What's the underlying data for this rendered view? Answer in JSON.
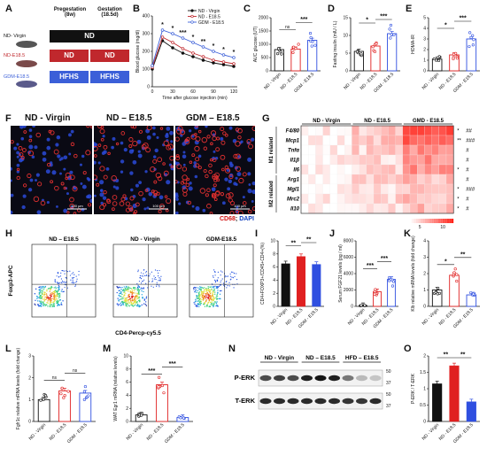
{
  "panel_letters": [
    "A",
    "B",
    "C",
    "D",
    "E",
    "F",
    "G",
    "H",
    "I",
    "J",
    "K",
    "L",
    "M",
    "N",
    "O"
  ],
  "panelA": {
    "col_headers": [
      "Pregestation\n(8w)",
      "Gestation\n(18.5d)"
    ],
    "rows": [
      {
        "label": "ND- Virgin",
        "boxes": [
          "ND"
        ],
        "color": "#111111"
      },
      {
        "label": "ND-E18.5",
        "boxes": [
          "ND",
          "ND"
        ],
        "color": "#c0282d"
      },
      {
        "label": "GDM-E18.5",
        "boxes": [
          "HFHS",
          "HFHS"
        ],
        "color": "#3b5fd8"
      }
    ]
  },
  "groups_ND": [
    "ND - Virgin",
    "ND - E18.5",
    "GDM - E18.5"
  ],
  "chart_data": [
    {
      "id": "B",
      "type": "line",
      "ylabel": "Blood glucose (mg/dl)",
      "xlabel": "Time after glucose injection (min)",
      "x": [
        0,
        15,
        30,
        45,
        60,
        75,
        90,
        105,
        120
      ],
      "ylim": [
        0,
        400
      ],
      "yticks": [
        0,
        100,
        200,
        300,
        400
      ],
      "series": [
        {
          "name": "ND - Virgin",
          "color": "#111111",
          "values": [
            100,
            260,
            220,
            190,
            170,
            150,
            135,
            125,
            115
          ]
        },
        {
          "name": "ND - E18.5",
          "color": "#c0282d",
          "values": [
            110,
            280,
            250,
            215,
            190,
            170,
            150,
            140,
            130
          ]
        },
        {
          "name": "GDM - E18.5",
          "color": "#3b5fd8",
          "values": [
            120,
            320,
            300,
            275,
            250,
            225,
            200,
            180,
            165
          ]
        }
      ],
      "stars": [
        "*",
        "*",
        "***",
        "*",
        "**",
        "*",
        "*",
        "*"
      ]
    },
    {
      "id": "C",
      "type": "bar",
      "ylabel": "AUC glucose (UT)",
      "categories": [
        "ND - Virgin",
        "ND - E18.5",
        "GDM - E18.5"
      ],
      "values": [
        800,
        820,
        1150
      ],
      "ylim": [
        0,
        2000
      ],
      "yticks": [
        0,
        500,
        1000,
        1500,
        2000
      ],
      "annotations": [
        "ns",
        "***"
      ]
    },
    {
      "id": "D",
      "type": "bar",
      "ylabel": "Fasting insulin (mIU / L)",
      "categories": [
        "ND - Virgin",
        "ND - E18.5",
        "GDM - E18.5"
      ],
      "values": [
        5.5,
        7.0,
        10.5
      ],
      "ylim": [
        0,
        15
      ],
      "yticks": [
        0,
        5,
        10,
        15
      ],
      "annotations": [
        "*",
        "***"
      ]
    },
    {
      "id": "E",
      "type": "bar",
      "ylabel": "HOMA-IR",
      "categories": [
        "ND - Virgin",
        "ND - E18.5",
        "GDM - E18.5"
      ],
      "values": [
        1.1,
        1.5,
        3.0
      ],
      "ylim": [
        0,
        5
      ],
      "yticks": [
        0,
        1,
        2,
        3,
        4,
        5
      ],
      "annotations": [
        "*",
        "***"
      ]
    },
    {
      "id": "I",
      "type": "bar",
      "ylabel": "CD4+FOXP3+/CD45+CD4+(%)",
      "categories": [
        "ND - Virgin",
        "ND - E18.5",
        "GDM - E18.5"
      ],
      "values": [
        6.5,
        7.6,
        6.4
      ],
      "ylim": [
        0,
        10
      ],
      "yticks": [
        0,
        2,
        4,
        6,
        8,
        10
      ],
      "annotations": [
        "**",
        "**"
      ]
    },
    {
      "id": "J",
      "type": "bar",
      "ylabel": "Serum FGF21 levels (pg / ml)",
      "categories": [
        "ND - Virgin",
        "ND - E18.5",
        "GDM - E18.5"
      ],
      "values": [
        100,
        1800,
        3300
      ],
      "ylim": [
        0,
        8000
      ],
      "yticks": [
        0,
        2000,
        4000,
        6000,
        8000
      ],
      "annotations": [
        "***",
        "***"
      ]
    },
    {
      "id": "K",
      "type": "bar",
      "ylabel": "Klb relative mRNA levels (fold change)",
      "categories": [
        "ND - Virgin",
        "ND - E18.5",
        "GDM - E18.5"
      ],
      "values": [
        1.0,
        1.9,
        0.7
      ],
      "ylim": [
        0,
        4
      ],
      "yticks": [
        0,
        1,
        2,
        3,
        4
      ],
      "annotations": [
        "*",
        "**"
      ]
    },
    {
      "id": "L",
      "type": "bar",
      "ylabel": "Fgfr1c relative mRNA levels (fold change)",
      "categories": [
        "ND - Virgin",
        "ND - E18.5",
        "GDM - E18.5"
      ],
      "values": [
        1.0,
        1.4,
        1.3
      ],
      "ylim": [
        0,
        3
      ],
      "yticks": [
        0,
        1,
        2,
        3
      ],
      "annotations": [
        "ns",
        "ns"
      ]
    },
    {
      "id": "M",
      "type": "bar",
      "ylabel": "WAT Egr1 mRNA (relative levels)",
      "categories": [
        "ND - Virgin",
        "ND - E18.5",
        "GDM - E18.5"
      ],
      "values": [
        1.0,
        5.6,
        0.6
      ],
      "ylim": [
        0,
        10
      ],
      "yticks": [
        0,
        2,
        4,
        6,
        8,
        10
      ],
      "annotations": [
        "***",
        "***"
      ]
    },
    {
      "id": "O",
      "type": "bar",
      "ylabel": "P-ERK / T-ERK",
      "categories": [
        "ND - Virgin",
        "ND - E18.5",
        "GDM - E18.5"
      ],
      "values": [
        1.15,
        1.7,
        0.6
      ],
      "ylim": [
        0,
        2.0
      ],
      "yticks": [
        0.0,
        0.5,
        1.0,
        1.5,
        2.0
      ],
      "annotations": [
        "**",
        "**"
      ]
    }
  ],
  "panelF": {
    "titles": [
      "ND - Virgin",
      "ND – E18.5",
      "GDM – E18.5"
    ],
    "legend_cd68": "CD68",
    "legend_dapi": "DAPI",
    "scale": "100 μm"
  },
  "panelG": {
    "groups": [
      "ND - Virgin",
      "ND - E18.5",
      "GMD - E18.5"
    ],
    "genes": [
      "F4/80",
      "Mcp1",
      "Tnfα",
      "Il1β",
      "Il6",
      "Arg1",
      "Mgl1",
      "Mrc2",
      "Il10"
    ],
    "sections": [
      "M1 related",
      "M2 related"
    ],
    "sig1": [
      "*",
      "**",
      "",
      "",
      "*",
      "",
      "*",
      "*",
      "*"
    ],
    "sig2": [
      "##",
      "###",
      "#",
      "#",
      "#",
      "#",
      "###",
      "#",
      "#"
    ],
    "scale": [
      "5",
      "10"
    ]
  },
  "panelH": {
    "titles": [
      "ND – E18.5",
      "ND - Virgin",
      "GDM-E18.5"
    ],
    "ylabel": "Foxp3-APC",
    "xlabel": "CD4-Percp-cy5.5"
  },
  "panelN": {
    "groups": [
      "ND - Virgin",
      "ND – E18.5",
      "HFD – E18.5"
    ],
    "rows": [
      "P-ERK",
      "T-ERK"
    ],
    "markers": [
      "50",
      "37",
      "50",
      "37"
    ]
  },
  "colors": {
    "black": "#111111",
    "red": "#e02020",
    "blue": "#2f4fe0",
    "heat_low": "#ffffff",
    "heat_high": "#d7191c"
  }
}
